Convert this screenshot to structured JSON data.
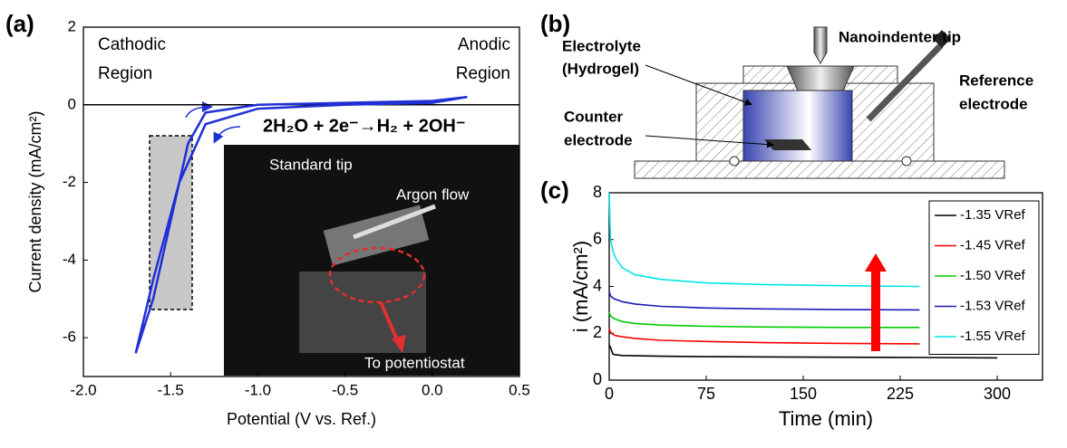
{
  "panel_labels": [
    "(a)",
    "(b)",
    "(c)"
  ],
  "diagram": {
    "electrolyte": [
      "Electrolyte",
      "(Hydrogel)"
    ],
    "tip": "Nanoindenter tip",
    "reference": [
      "Reference",
      "electrode"
    ],
    "counter": [
      "Counter",
      "electrode"
    ]
  },
  "photo": {
    "labels": [
      "Standard tip",
      "Argon flow",
      "To potentiostat"
    ]
  },
  "chart_data": [
    {
      "type": "line",
      "x_label": "Potential (V vs. Ref.)",
      "y_label": "Current density (mA/cm²)",
      "annotations": {
        "cathodic": [
          "Cathodic",
          "Region"
        ],
        "anodic": [
          "Anodic",
          "Region"
        ],
        "reaction": "2H₂O + 2e⁻→H₂ + 2OH⁻"
      },
      "xlim": [
        -2,
        0.5
      ],
      "ylim": [
        -7,
        2
      ],
      "xticks": [
        {
          "value": -2,
          "label": "-2.0"
        },
        -1.5,
        {
          "value": -1,
          "label": "-1.0"
        },
        -0.5,
        {
          "value": 0,
          "label": "0.0"
        },
        0.5
      ],
      "yticks": [
        2,
        0,
        -2,
        -4,
        -6
      ],
      "series": [
        {
          "color": "#1f2fd6",
          "x": [
            -1.7,
            -1.6,
            -1.5,
            -1.4,
            -1.3,
            -1.0,
            -0.5,
            0.0,
            0.2,
            0.0,
            -0.5,
            -1.0,
            -1.3,
            -1.45,
            -1.6,
            -1.7
          ],
          "values": [
            -6.4,
            -5.0,
            -3.0,
            -1.0,
            -0.2,
            0.0,
            0.05,
            0.1,
            0.2,
            0.05,
            0.0,
            -0.1,
            -0.5,
            -2.0,
            -4.5,
            -6.4
          ]
        }
      ]
    },
    {
      "type": "line",
      "x_label": "Time (min)",
      "y_label": "i (mA/cm²)",
      "xlim": [
        0,
        335
      ],
      "ylim": [
        0,
        8
      ],
      "xticks": [
        0,
        75,
        150,
        225,
        300
      ],
      "yticks": [
        0,
        2,
        4,
        6,
        8
      ],
      "series": [
        {
          "name": "-1.35 VRef",
          "color": "#000000",
          "x": [
            0,
            1,
            3,
            10,
            40,
            75,
            150,
            225,
            300
          ],
          "values": [
            1.5,
            1.4,
            1.1,
            1.05,
            1.02,
            1.0,
            0.98,
            0.97,
            0.95
          ]
        },
        {
          "name": "-1.45 VRef",
          "color": "#ff0000",
          "x": [
            0,
            1,
            3,
            5,
            10,
            20,
            40,
            75,
            120,
            180,
            240
          ],
          "values": [
            2.2,
            2.05,
            1.95,
            1.9,
            1.85,
            1.78,
            1.7,
            1.65,
            1.6,
            1.57,
            1.55
          ]
        },
        {
          "name": "-1.50 VRef",
          "color": "#00cc00",
          "x": [
            0,
            1,
            3,
            5,
            10,
            20,
            40,
            75,
            120,
            180,
            240
          ],
          "values": [
            2.9,
            2.75,
            2.65,
            2.6,
            2.5,
            2.42,
            2.35,
            2.3,
            2.27,
            2.25,
            2.25
          ]
        },
        {
          "name": "-1.53 VRef",
          "color": "#1a1ab8",
          "x": [
            0,
            1,
            3,
            5,
            10,
            20,
            40,
            75,
            120,
            180,
            240
          ],
          "values": [
            3.8,
            3.6,
            3.5,
            3.45,
            3.35,
            3.25,
            3.15,
            3.08,
            3.04,
            3.01,
            3.0
          ]
        },
        {
          "name": "-1.55 VRef",
          "color": "#00e5e5",
          "x": [
            0,
            1,
            3,
            5,
            10,
            20,
            40,
            75,
            120,
            180,
            240
          ],
          "values": [
            8,
            6.0,
            5.5,
            5.2,
            4.8,
            4.5,
            4.3,
            4.15,
            4.08,
            4.03,
            4.0
          ]
        }
      ]
    }
  ]
}
